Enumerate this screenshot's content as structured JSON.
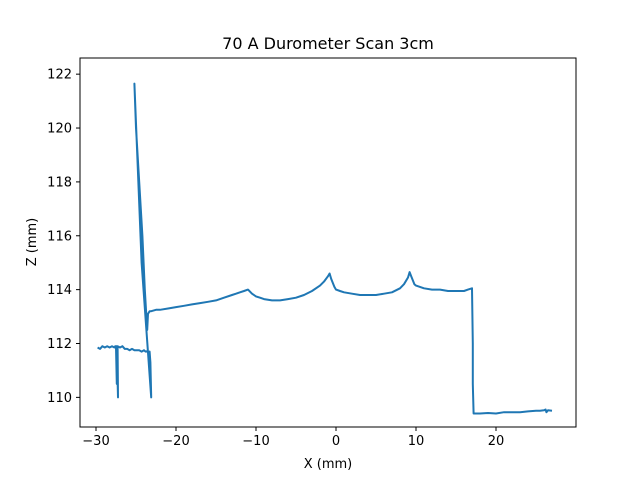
{
  "chart_data": {
    "type": "line",
    "title": "70 A Durometer Scan 3cm",
    "xlabel": "X (mm)",
    "ylabel": "Z (mm)",
    "xlim": [
      -32,
      30
    ],
    "ylim": [
      108.9,
      122.6
    ],
    "xticks": [
      -30,
      -20,
      -10,
      0,
      10,
      20
    ],
    "yticks": [
      110,
      112,
      114,
      116,
      118,
      120,
      122
    ],
    "grid": false,
    "line_color": "#1f77b4",
    "series": [
      {
        "x": [
          -29.8,
          -29.5,
          -29.2,
          -28.9,
          -28.6,
          -28.3,
          -28.0,
          -27.7,
          -27.5,
          -27.3,
          -27.25,
          -27.35,
          -27.4,
          -27.5,
          -27.6,
          -27.3,
          -27.0,
          -26.7,
          -26.4,
          -26.1,
          -25.8,
          -25.5,
          -25.2,
          -24.9,
          -24.6,
          -24.3,
          -24.0,
          -23.8,
          -23.7,
          -23.6,
          -23.5,
          -23.4,
          -23.3,
          -23.2,
          -23.1,
          -24.3,
          -25.2,
          -25.0,
          -24.6,
          -24.2,
          -23.9,
          -23.7,
          -23.6,
          -23.5,
          -23.3,
          -23.1,
          -22.5,
          -22.0,
          -21.0,
          -20.0,
          -19.0,
          -18.0,
          -17.0,
          -16.0,
          -15.0,
          -14.0,
          -13.0,
          -12.5,
          -12.0,
          -11.5,
          -11.0,
          -10.5,
          -10.0,
          -9.5,
          -9.0,
          -8.0,
          -7.0,
          -6.0,
          -5.0,
          -4.0,
          -3.0,
          -2.0,
          -1.5,
          -1.0,
          -0.8,
          -0.6,
          -0.4,
          -0.2,
          0.0,
          0.5,
          1.0,
          2.0,
          3.0,
          4.0,
          5.0,
          6.0,
          7.0,
          8.0,
          8.5,
          9.0,
          9.2,
          9.4,
          9.6,
          9.8,
          10.0,
          10.5,
          11.0,
          12.0,
          13.0,
          14.0,
          15.0,
          16.0,
          16.5,
          17.0,
          17.1,
          17.1,
          17.2,
          17.3,
          18.0,
          19.0,
          20.0,
          21.0,
          22.0,
          23.0,
          24.0,
          25.0,
          25.5,
          26.0,
          26.2,
          26.3,
          26.5,
          27.0
        ],
        "y": [
          111.85,
          111.8,
          111.9,
          111.85,
          111.9,
          111.85,
          111.9,
          111.85,
          111.9,
          111.85,
          110.0,
          111.2,
          110.5,
          111.85,
          111.9,
          111.9,
          111.85,
          111.9,
          111.8,
          111.8,
          111.75,
          111.8,
          111.75,
          111.75,
          111.75,
          111.7,
          111.75,
          111.7,
          111.7,
          111.72,
          111.7,
          111.68,
          111.7,
          111.3,
          110.0,
          115.0,
          121.65,
          120.0,
          118.0,
          116.0,
          114.0,
          113.0,
          112.5,
          113.1,
          113.2,
          113.2,
          113.25,
          113.25,
          113.3,
          113.35,
          113.4,
          113.45,
          113.5,
          113.55,
          113.6,
          113.7,
          113.8,
          113.85,
          113.9,
          113.95,
          114.0,
          113.85,
          113.75,
          113.7,
          113.65,
          113.6,
          113.6,
          113.65,
          113.7,
          113.8,
          113.95,
          114.15,
          114.3,
          114.5,
          114.6,
          114.4,
          114.25,
          114.1,
          114.0,
          113.95,
          113.9,
          113.85,
          113.8,
          113.8,
          113.8,
          113.85,
          113.9,
          114.05,
          114.2,
          114.45,
          114.65,
          114.5,
          114.35,
          114.2,
          114.15,
          114.1,
          114.05,
          114.0,
          114.0,
          113.95,
          113.95,
          113.95,
          114.0,
          114.05,
          112.0,
          110.5,
          109.4,
          109.4,
          109.4,
          109.42,
          109.4,
          109.45,
          109.45,
          109.45,
          109.48,
          109.5,
          109.5,
          109.52,
          109.55,
          109.45,
          109.52,
          109.5
        ]
      }
    ]
  }
}
